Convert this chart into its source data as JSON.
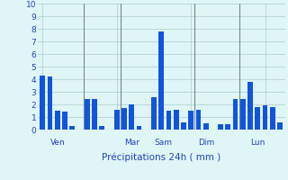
{
  "values": [
    4.3,
    4.2,
    1.5,
    1.4,
    0.3,
    0.0,
    2.4,
    2.4,
    0.3,
    0.0,
    1.6,
    1.7,
    2.0,
    0.3,
    0.0,
    2.6,
    7.8,
    1.5,
    1.6,
    0.6,
    1.5,
    1.6,
    0.5,
    0.0,
    0.4,
    0.4,
    2.4,
    2.4,
    3.8,
    1.8,
    1.9,
    1.8,
    0.6
  ],
  "bar_color": "#1155dd",
  "bg_color": "#e0f5f5",
  "grid_color": "#aacccc",
  "vline_color": "#778888",
  "xlabel": "Précipitations 24h ( mm )",
  "xlabel_color": "#2244bb",
  "tick_label_color": "#2244bb",
  "day_labels": [
    "Ven",
    "Mar",
    "Sam",
    "Dim",
    "Lun"
  ],
  "day_label_color": "#2244bb",
  "day_positions": [
    1,
    11,
    15,
    21,
    28
  ],
  "vline_positions": [
    5.5,
    10.5,
    20.5,
    26.5
  ],
  "ylim": [
    0,
    10
  ],
  "yticks": [
    0,
    1,
    2,
    3,
    4,
    5,
    6,
    7,
    8,
    9,
    10
  ]
}
